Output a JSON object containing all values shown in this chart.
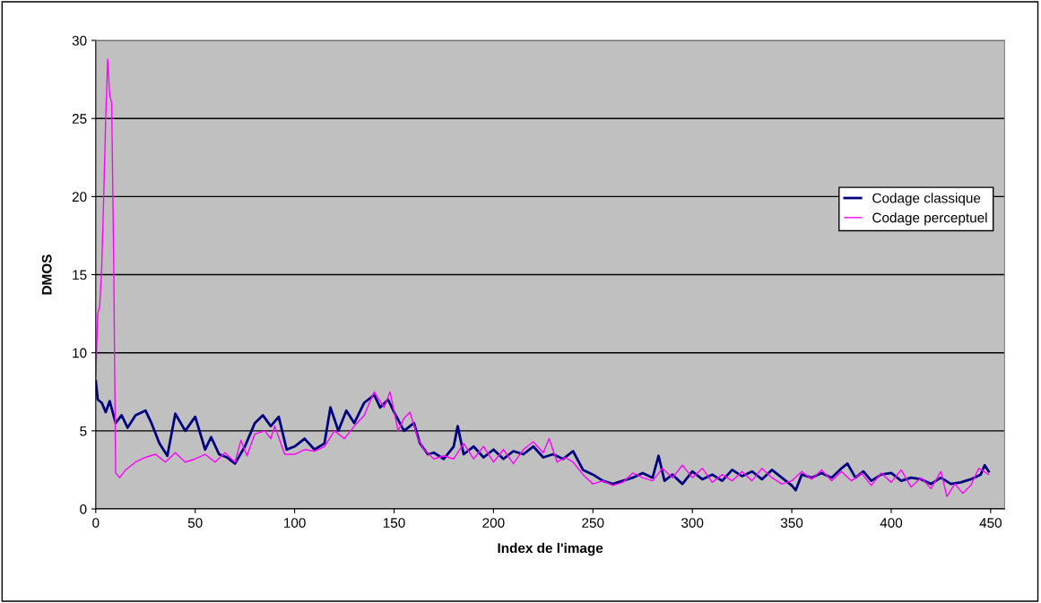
{
  "chart_data": {
    "type": "line",
    "xlabel": "Index de l'image",
    "ylabel": "DMOS",
    "xlim": [
      0,
      457
    ],
    "xticks": [
      0,
      50,
      100,
      150,
      200,
      250,
      300,
      350,
      400,
      450
    ],
    "ylim": [
      0,
      30
    ],
    "yticks": [
      0,
      5,
      10,
      15,
      20,
      25,
      30
    ],
    "grid": "y",
    "legend": "right",
    "marker": "none",
    "line_style": "solid",
    "series": [
      {
        "name": "Codage classique",
        "color": "#000080",
        "x": [
          0,
          1,
          3,
          5,
          7,
          10,
          13,
          16,
          20,
          25,
          28,
          32,
          36,
          40,
          45,
          50,
          55,
          58,
          62,
          66,
          70,
          75,
          80,
          84,
          88,
          92,
          96,
          100,
          105,
          110,
          115,
          118,
          122,
          126,
          130,
          135,
          140,
          143,
          147,
          150,
          155,
          160,
          163,
          167,
          170,
          175,
          180,
          182,
          185,
          190,
          195,
          200,
          205,
          210,
          215,
          220,
          225,
          230,
          235,
          240,
          245,
          250,
          255,
          260,
          265,
          270,
          275,
          280,
          283,
          286,
          290,
          295,
          300,
          305,
          310,
          315,
          320,
          325,
          330,
          335,
          340,
          345,
          350,
          352,
          355,
          360,
          365,
          370,
          375,
          378,
          382,
          386,
          390,
          395,
          400,
          405,
          410,
          415,
          420,
          425,
          430,
          435,
          440,
          445,
          447,
          449
        ],
        "values": [
          8.2,
          7.0,
          6.8,
          6.2,
          6.9,
          5.5,
          6.0,
          5.2,
          6.0,
          6.3,
          5.5,
          4.2,
          3.4,
          6.1,
          5.0,
          5.9,
          3.8,
          4.6,
          3.5,
          3.3,
          2.9,
          4.0,
          5.5,
          6.0,
          5.3,
          5.9,
          3.8,
          4.0,
          4.5,
          3.8,
          4.2,
          6.5,
          5.0,
          6.3,
          5.5,
          6.8,
          7.3,
          6.5,
          7.0,
          6.2,
          5.0,
          5.5,
          4.2,
          3.5,
          3.6,
          3.2,
          4.0,
          5.3,
          3.5,
          4.0,
          3.3,
          3.8,
          3.2,
          3.7,
          3.5,
          4.0,
          3.3,
          3.5,
          3.2,
          3.7,
          2.5,
          2.2,
          1.8,
          1.6,
          1.8,
          2.0,
          2.3,
          2.0,
          3.4,
          1.8,
          2.2,
          1.6,
          2.4,
          1.9,
          2.2,
          1.8,
          2.5,
          2.1,
          2.4,
          1.9,
          2.5,
          2.0,
          1.5,
          1.2,
          2.2,
          2.0,
          2.3,
          2.0,
          2.6,
          2.9,
          2.0,
          2.4,
          1.8,
          2.2,
          2.3,
          1.8,
          2.0,
          1.9,
          1.6,
          2.0,
          1.6,
          1.7,
          1.9,
          2.2,
          2.8,
          2.4
        ]
      },
      {
        "name": "Codage perceptuel",
        "color": "#ff00ff",
        "x": [
          0,
          1,
          2,
          3,
          4,
          5,
          6,
          7,
          8,
          9,
          10,
          12,
          15,
          20,
          25,
          30,
          35,
          40,
          45,
          50,
          55,
          60,
          65,
          70,
          73,
          76,
          80,
          85,
          88,
          90,
          95,
          100,
          105,
          110,
          115,
          120,
          125,
          130,
          135,
          140,
          145,
          148,
          152,
          155,
          158,
          162,
          165,
          170,
          175,
          180,
          185,
          190,
          195,
          200,
          205,
          210,
          215,
          220,
          225,
          228,
          232,
          236,
          240,
          245,
          250,
          255,
          260,
          265,
          270,
          275,
          280,
          285,
          290,
          295,
          300,
          305,
          310,
          315,
          320,
          325,
          330,
          335,
          340,
          345,
          350,
          355,
          360,
          365,
          370,
          375,
          380,
          385,
          390,
          395,
          400,
          405,
          410,
          415,
          420,
          425,
          428,
          432,
          436,
          440,
          444,
          449
        ],
        "values": [
          8.5,
          12.5,
          13.0,
          15.5,
          20,
          25,
          28.8,
          26.5,
          26.0,
          16,
          2.3,
          2.0,
          2.5,
          3.0,
          3.3,
          3.5,
          3.0,
          3.6,
          3.0,
          3.2,
          3.5,
          3.0,
          3.6,
          3.0,
          4.4,
          3.4,
          4.8,
          5.0,
          4.5,
          5.3,
          3.5,
          3.5,
          3.8,
          3.7,
          4.0,
          5.0,
          4.5,
          5.3,
          6.0,
          7.5,
          6.5,
          7.5,
          5.0,
          5.8,
          6.2,
          4.5,
          3.8,
          3.2,
          3.4,
          3.2,
          4.2,
          3.2,
          4.0,
          3.0,
          3.8,
          2.9,
          3.8,
          4.3,
          3.6,
          4.5,
          3.0,
          3.3,
          3.0,
          2.2,
          1.6,
          1.8,
          1.5,
          1.7,
          2.3,
          2.0,
          1.8,
          2.6,
          2.0,
          2.8,
          2.0,
          2.6,
          1.7,
          2.2,
          1.8,
          2.4,
          1.8,
          2.6,
          2.0,
          1.6,
          1.8,
          2.4,
          1.9,
          2.5,
          1.8,
          2.4,
          1.8,
          2.3,
          1.5,
          2.3,
          1.7,
          2.5,
          1.4,
          2.0,
          1.3,
          2.4,
          0.8,
          1.6,
          1.0,
          1.5,
          2.6,
          2.2
        ]
      }
    ]
  }
}
